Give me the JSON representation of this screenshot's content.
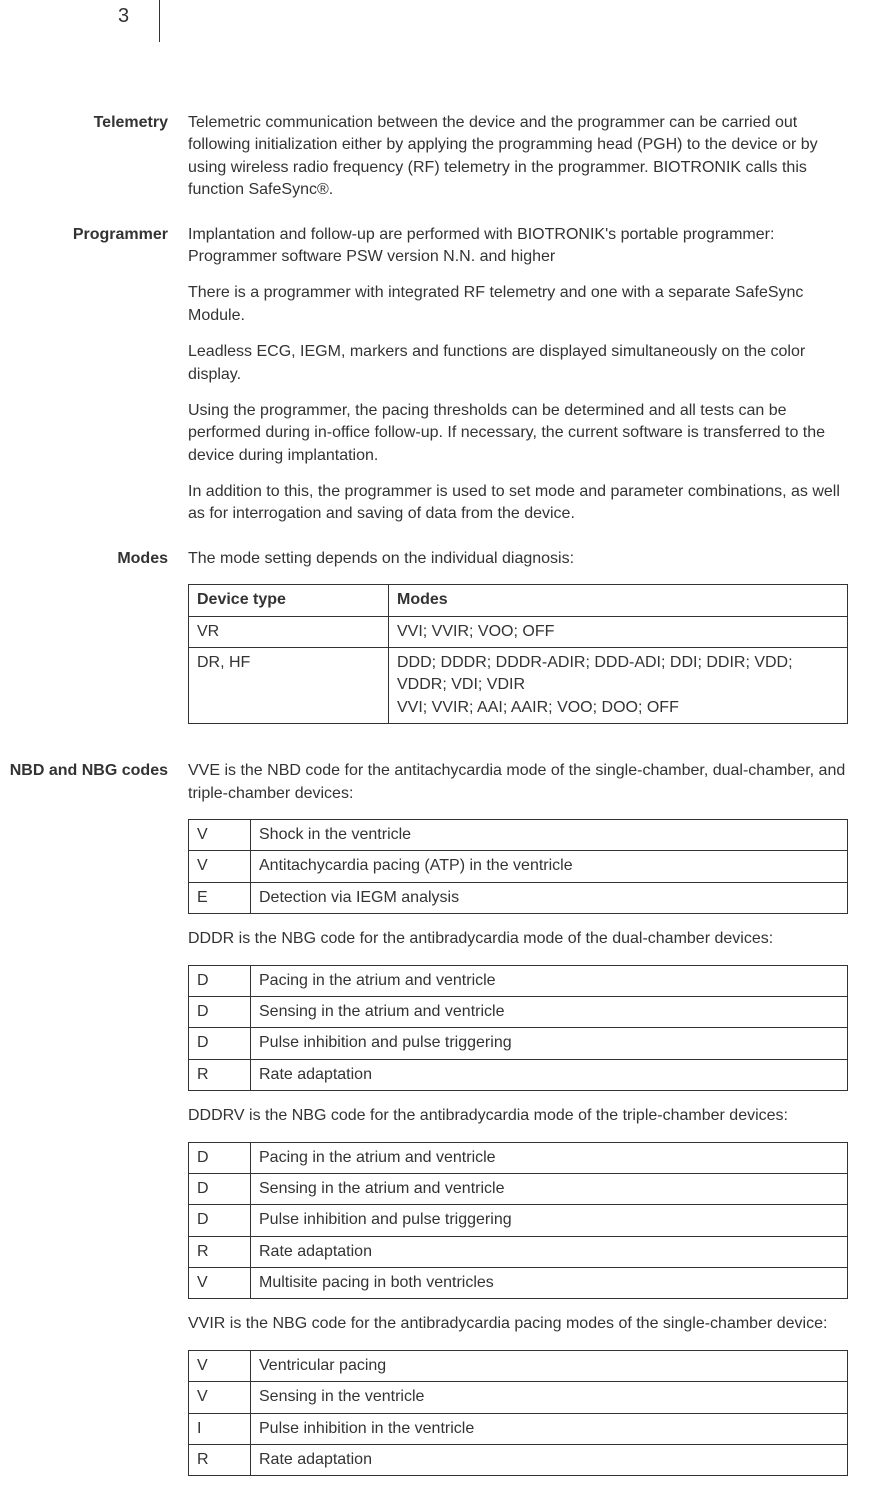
{
  "page_number": "3",
  "sections": {
    "telemetry": {
      "label": "Telemetry",
      "text": "Telemetric communication between the device and the programmer can be carried out following initialization either by applying the programming head (PGH) to the device or by using wireless radio frequency (RF) telemetry in the programmer. BIOTRONIK calls this function SafeSync®."
    },
    "programmer": {
      "label": "Programmer",
      "paras": [
        "Implantation and follow-up are performed with BIOTRONIK's portable programmer: Programmer software PSW version N.N. and higher",
        "There is a programmer with integrated RF telemetry and one with a separate SafeSync Module.",
        "Leadless ECG, IEGM, markers and functions are displayed simultaneously on the color display.",
        "Using the programmer, the pacing thresholds can be determined and all tests can be performed during in-office follow-up. If necessary, the current software is transferred to the device during implantation.",
        "In addition to this, the programmer is used to set mode and parameter combinations, as well as for interrogation and saving of data from the device."
      ]
    },
    "modes": {
      "label": "Modes",
      "intro": "The mode setting depends on the individual diagnosis:",
      "table": {
        "headers": [
          "Device type",
          "Modes"
        ],
        "rows": [
          {
            "device": "VR",
            "modes": "VVI; VVIR; VOO; OFF"
          },
          {
            "device": "DR, HF",
            "modes": "DDD; DDDR; DDDR-ADIR; DDD-ADI; DDI; DDIR; VDD; VDDR; VDI; VDIR\nVVI; VVIR; AAI; AAIR; VOO; DOO; OFF"
          }
        ]
      }
    },
    "nbd": {
      "label": "NBD and NBG codes",
      "vve_intro": "VVE is the NBD code for the antitachycardia mode of the single-chamber, dual-chamber, and triple-chamber devices:",
      "vve_table": [
        {
          "code": "V",
          "desc": "Shock in the ventricle"
        },
        {
          "code": "V",
          "desc": "Antitachycardia pacing (ATP) in the ventricle"
        },
        {
          "code": "E",
          "desc": "Detection via IEGM analysis"
        }
      ],
      "dddr_intro": "DDDR is the NBG code for the antibradycardia mode of the dual-chamber devices:",
      "dddr_table": [
        {
          "code": "D",
          "desc": "Pacing in the atrium and ventricle"
        },
        {
          "code": "D",
          "desc": "Sensing in the atrium and ventricle"
        },
        {
          "code": "D",
          "desc": "Pulse inhibition and pulse triggering"
        },
        {
          "code": "R",
          "desc": "Rate adaptation"
        }
      ],
      "dddrv_intro": "DDDRV is the NBG code for the antibradycardia mode of the triple-chamber devices:",
      "dddrv_table": [
        {
          "code": "D",
          "desc": "Pacing in the atrium and ventricle"
        },
        {
          "code": "D",
          "desc": "Sensing in the atrium and ventricle"
        },
        {
          "code": "D",
          "desc": "Pulse inhibition and pulse triggering"
        },
        {
          "code": "R",
          "desc": "Rate adaptation"
        },
        {
          "code": "V",
          "desc": "Multisite pacing in both ventricles"
        }
      ],
      "vvir_intro": "VVIR is the NBG code for the antibradycardia pacing modes of the single-chamber device:",
      "vvir_table": [
        {
          "code": "V",
          "desc": "Ventricular pacing"
        },
        {
          "code": "V",
          "desc": "Sensing in the ventricle"
        },
        {
          "code": "I",
          "desc": "Pulse inhibition in the ventricle"
        },
        {
          "code": "R",
          "desc": "Rate adaptation"
        }
      ]
    }
  }
}
